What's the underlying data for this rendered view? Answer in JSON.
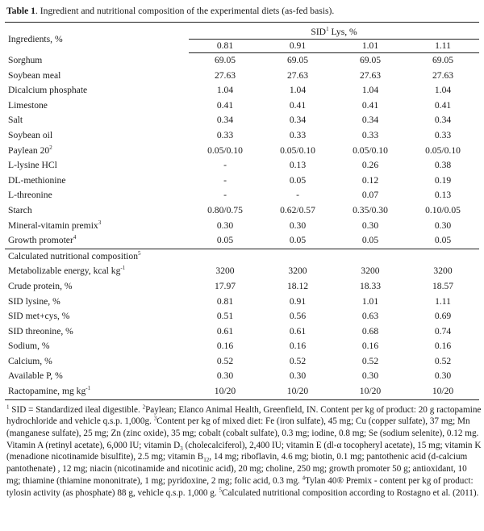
{
  "caption": {
    "label": "Table 1",
    "text": ". Ingredient and nutritional composition of the experimental diets (as-fed basis)."
  },
  "header": {
    "ingredients_label": "Ingredients, %",
    "group_label": "SID",
    "group_sup": "1",
    "group_suffix": " Lys, %",
    "columns": [
      "0.81",
      "0.91",
      "1.01",
      "1.11"
    ]
  },
  "ingredients": [
    {
      "name": "Sorghum",
      "sup": "",
      "values": [
        "69.05",
        "69.05",
        "69.05",
        "69.05"
      ]
    },
    {
      "name": "Soybean meal",
      "sup": "",
      "values": [
        "27.63",
        "27.63",
        "27.63",
        "27.63"
      ]
    },
    {
      "name": "Dicalcium phosphate",
      "sup": "",
      "values": [
        "1.04",
        "1.04",
        "1.04",
        "1.04"
      ]
    },
    {
      "name": "Limestone",
      "sup": "",
      "values": [
        "0.41",
        "0.41",
        "0.41",
        "0.41"
      ]
    },
    {
      "name": "Salt",
      "sup": "",
      "values": [
        "0.34",
        "0.34",
        "0.34",
        "0.34"
      ]
    },
    {
      "name": "Soybean oil",
      "sup": "",
      "values": [
        "0.33",
        "0.33",
        "0.33",
        "0.33"
      ]
    },
    {
      "name": "Paylean 20",
      "sup": "2",
      "values": [
        "0.05/0.10",
        "0.05/0.10",
        "0.05/0.10",
        "0.05/0.10"
      ]
    },
    {
      "name": "L-lysine HCl",
      "sup": "",
      "values": [
        "-",
        "0.13",
        "0.26",
        "0.38"
      ]
    },
    {
      "name": "DL-methionine",
      "sup": "",
      "values": [
        "-",
        "0.05",
        "0.12",
        "0.19"
      ]
    },
    {
      "name": "L-threonine",
      "sup": "",
      "values": [
        "-",
        "-",
        "0.07",
        "0.13"
      ]
    },
    {
      "name": "Starch",
      "sup": "",
      "values": [
        "0.80/0.75",
        "0.62/0.57",
        "0.35/0.30",
        "0.10/0.05"
      ]
    },
    {
      "name": "Mineral-vitamin premix",
      "sup": "3",
      "values": [
        "0.30",
        "0.30",
        "0.30",
        "0.30"
      ]
    },
    {
      "name": "Growth promoter",
      "sup": "4",
      "values": [
        "0.05",
        "0.05",
        "0.05",
        "0.05"
      ]
    }
  ],
  "calculated": {
    "heading": "Calculated nutritional composition",
    "heading_sup": "5",
    "rows": [
      {
        "name": "Metabolizable energy, kcal kg",
        "sup": "-1",
        "values": [
          "3200",
          "3200",
          "3200",
          "3200"
        ]
      },
      {
        "name": "Crude protein, %",
        "sup": "",
        "values": [
          "17.97",
          "18.12",
          "18.33",
          "18.57"
        ]
      },
      {
        "name": "SID lysine, %",
        "sup": "",
        "values": [
          "0.81",
          "0.91",
          "1.01",
          "1.11"
        ]
      },
      {
        "name": "SID met+cys, %",
        "sup": "",
        "values": [
          "0.51",
          "0.56",
          "0.63",
          "0.69"
        ]
      },
      {
        "name": "SID threonine, %",
        "sup": "",
        "values": [
          "0.61",
          "0.61",
          "0.68",
          "0.74"
        ]
      },
      {
        "name": "Sodium, %",
        "sup": "",
        "values": [
          "0.16",
          "0.16",
          "0.16",
          "0.16"
        ]
      },
      {
        "name": "Calcium, %",
        "sup": "",
        "values": [
          "0.52",
          "0.52",
          "0.52",
          "0.52"
        ]
      },
      {
        "name": "Available P, %",
        "sup": "",
        "values": [
          "0.30",
          "0.30",
          "0.30",
          "0.30"
        ]
      },
      {
        "name": "Ractopamine, mg kg",
        "sup": "-1",
        "values": [
          "10/20",
          "10/20",
          "10/20",
          "10/20"
        ]
      }
    ]
  },
  "footnotes": {
    "f1_mark": "1",
    "f1": " SID = Standardized ileal digestible. ",
    "f2_mark": "2",
    "f2": "Paylean; Elanco Animal Health, Greenfield, IN. Content per kg of product: 20 g ractopamine hydrochloride and vehicle q.s.p. 1,000g. ",
    "f3_mark": "3",
    "f3_a": "Content per kg of mixed diet: Fe (iron sulfate), 45 mg; Cu (copper sulfate), 37 mg; Mn (manganese sulfate), 25 mg; Zn (zinc oxide), 35 mg; cobalt (cobalt sulfate), 0.3 mg; iodine, 0.8 mg; Se (sodium selenite), 0.12 mg. Vitamin A (retinyl acetate), 6,000 IU; vitamin D",
    "f3_sub1": "3",
    "f3_b": " (cholecalciferol), 2,400 IU; vitamin E (dl-α tocopheryl acetate), 15 mg; vitamin K (menadione nicotinamide bisulfite), 2.5 mg; vitamin B",
    "f3_sub2": "12",
    "f3_c": ", 14 mg; riboflavin, 4.6 mg; biotin, 0.1 mg; pantothenic acid (d-calcium pantothenate) , 12 mg; niacin (nicotinamide and nicotinic acid), 20 mg; choline, 250 mg; growth promoter 50 g; antioxidant, 10 mg; thiamine (thiamine mononitrate), 1 mg; pyridoxine, 2 mg; folic acid, 0.3 mg. ",
    "f4_mark": "4",
    "f4": "Tylan 40® Premix - content per kg of product: tylosin activity (as phosphate) 88 g, vehicle q.s.p. 1,000 g. ",
    "f5_mark": "5",
    "f5": "Calculated nutritional composition according to Rostagno et al. (2011)."
  }
}
